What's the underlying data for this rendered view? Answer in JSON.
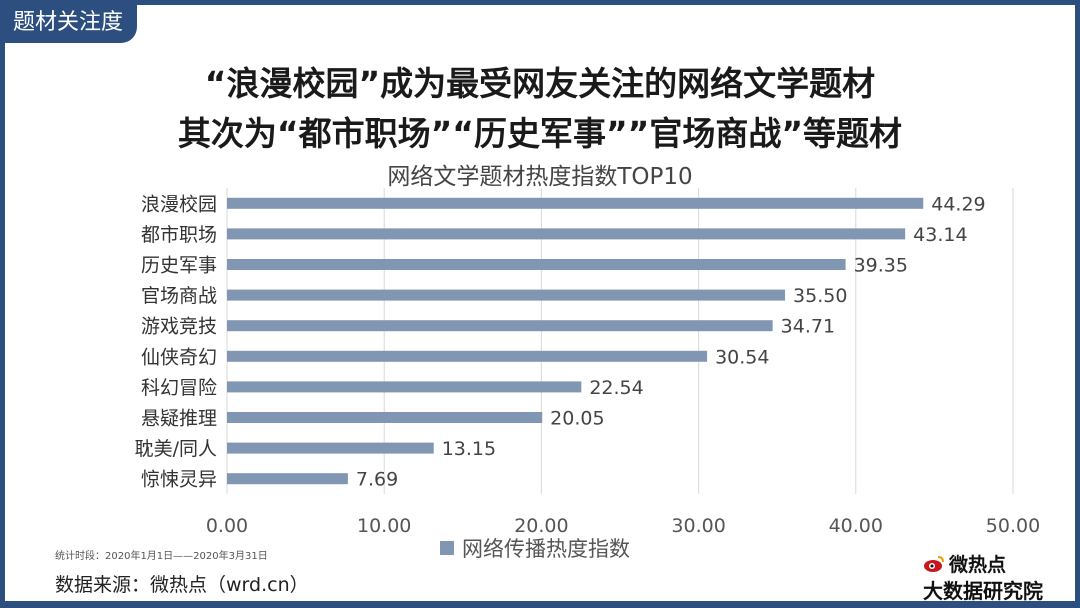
{
  "tag": "题材关注度",
  "headline": {
    "line1": "“浪漫校园”成为最受网友关注的网络文学题材",
    "line2": "其次为“都市职场”“历史军事””官场商战”等题材"
  },
  "chart_data": {
    "type": "bar",
    "orientation": "horizontal",
    "title": "网络文学题材热度指数TOP10",
    "categories": [
      "浪漫校园",
      "都市职场",
      "历史军事",
      "官场商战",
      "游戏竞技",
      "仙侠奇幻",
      "科幻冒险",
      "悬疑推理",
      "耽美/同人",
      "惊悚灵异"
    ],
    "series": [
      {
        "name": "网络传播热度指数",
        "values": [
          44.29,
          43.14,
          39.35,
          35.5,
          34.71,
          30.54,
          22.54,
          20.05,
          13.15,
          7.69
        ]
      }
    ],
    "value_labels": [
      "44.29",
      "43.14",
      "39.35",
      "35.50",
      "34.71",
      "30.54",
      "22.54",
      "20.05",
      "13.15",
      "7.69"
    ],
    "xlim": [
      0,
      50
    ],
    "xticks": [
      "0.00",
      "10.00",
      "20.00",
      "30.00",
      "40.00",
      "50.00"
    ],
    "grid": true,
    "legend": "bottom",
    "bar_color": "#8096b3"
  },
  "footer": {
    "period": "统计时段：2020年1月1日——2020年3月31日",
    "source": "数据来源：微热点（wrd.cn）",
    "logo_top": "微热点",
    "logo_bottom": "大数据研究院"
  },
  "colors": {
    "frame": "#2d4f80",
    "bar": "#8096b3"
  }
}
